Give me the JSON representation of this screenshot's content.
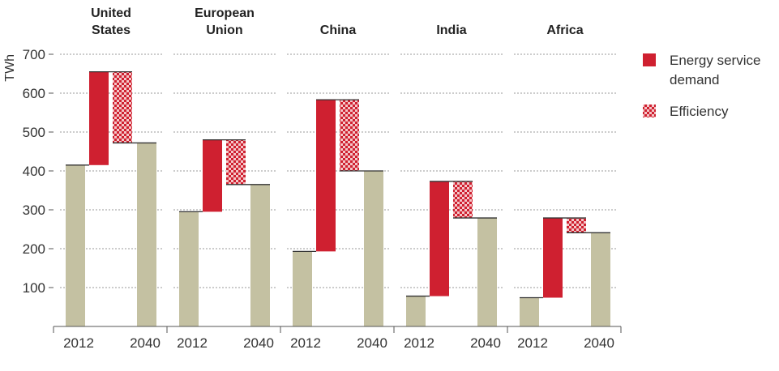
{
  "chart_data": {
    "type": "waterfall",
    "ylabel": "TWh",
    "ylim": [
      0,
      700
    ],
    "yticks": [
      100,
      200,
      300,
      400,
      500,
      600,
      700
    ],
    "grid": true,
    "legend_position": "right",
    "colors": {
      "base": "#c4c1a2",
      "demand": "#cf2030",
      "efficiency_light": "#f4c6c8",
      "efficiency_dark": "#cf2030",
      "grid": "#999999",
      "axis": "#555555"
    },
    "legend": [
      {
        "key": "demand",
        "label_lines": [
          "Energy service",
          "demand"
        ]
      },
      {
        "key": "efficiency",
        "label_lines": [
          "Efficiency"
        ]
      }
    ],
    "regions": [
      {
        "name_lines": [
          "United",
          "States"
        ],
        "x_labels": [
          "2012",
          "2040"
        ],
        "value_2012": 415,
        "energy_service_demand": 240,
        "efficiency": -183,
        "value_2040": 472
      },
      {
        "name_lines": [
          "European",
          "Union"
        ],
        "x_labels": [
          "2012",
          "2040"
        ],
        "value_2012": 295,
        "energy_service_demand": 185,
        "efficiency": -115,
        "value_2040": 365
      },
      {
        "name_lines": [
          "China"
        ],
        "x_labels": [
          "2012",
          "2040"
        ],
        "value_2012": 193,
        "energy_service_demand": 390,
        "efficiency": -183,
        "value_2040": 400
      },
      {
        "name_lines": [
          "India"
        ],
        "x_labels": [
          "2012",
          "2040"
        ],
        "value_2012": 78,
        "energy_service_demand": 295,
        "efficiency": -94,
        "value_2040": 279
      },
      {
        "name_lines": [
          "Africa"
        ],
        "x_labels": [
          "2012",
          "2040"
        ],
        "value_2012": 74,
        "energy_service_demand": 205,
        "efficiency": -38,
        "value_2040": 241
      }
    ]
  }
}
